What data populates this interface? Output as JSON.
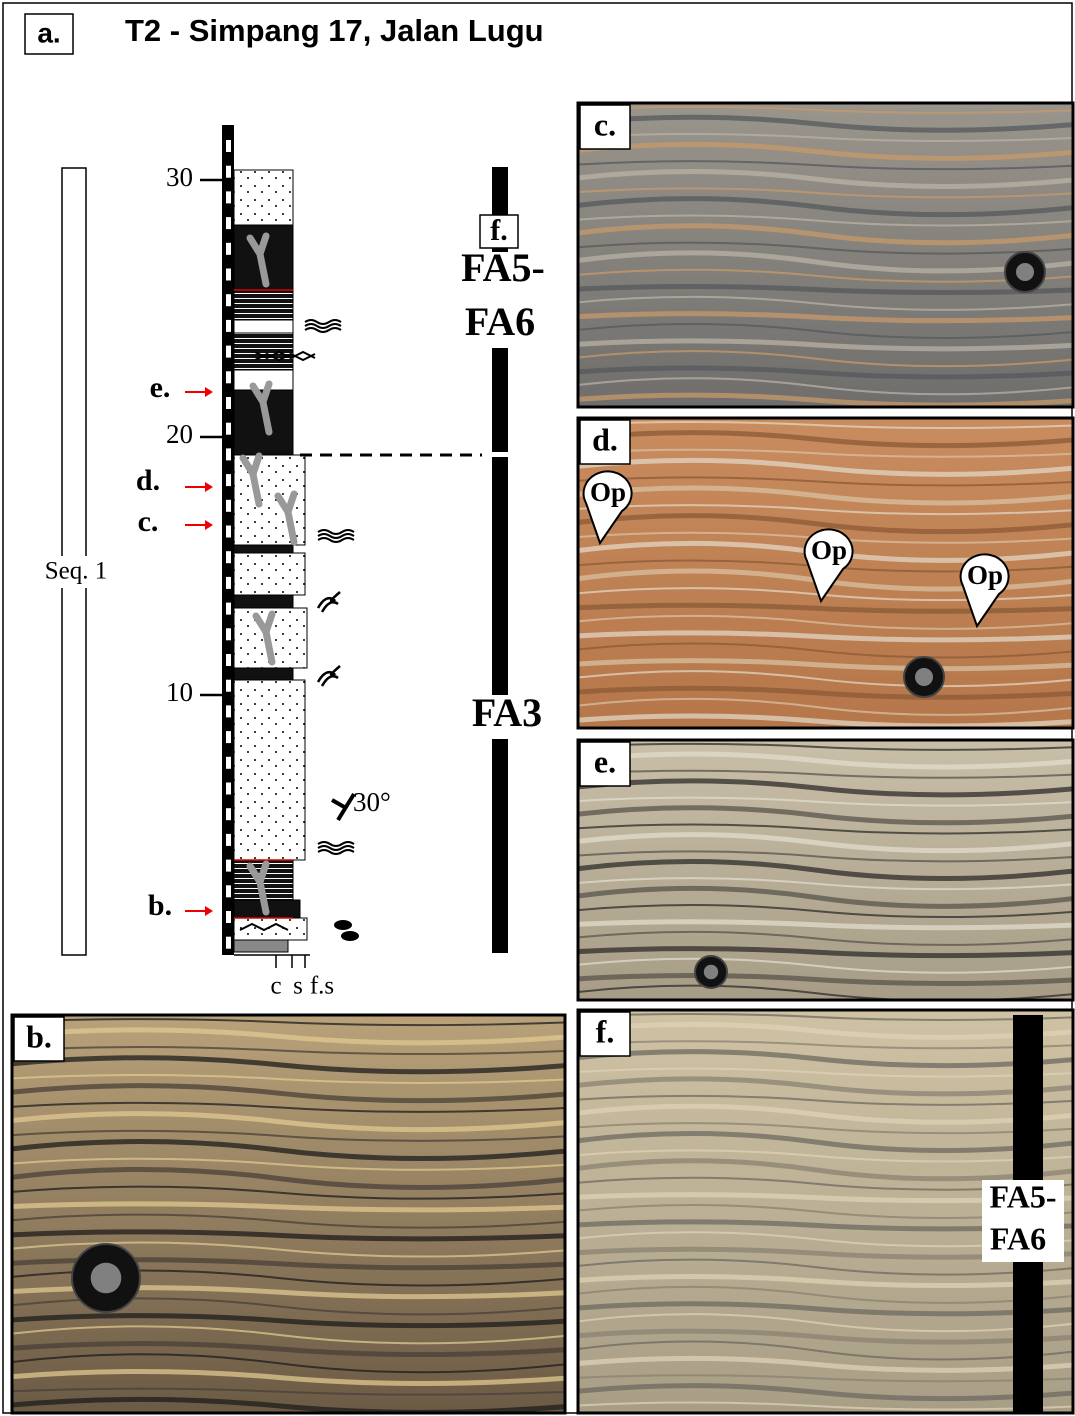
{
  "panel_label": "a.",
  "title": "T2 - Simpang 17, Jalan Lugu",
  "log": {
    "depth_ticks": [
      "30",
      "20",
      "10"
    ],
    "grain_size": [
      "c",
      "s",
      "f.s"
    ],
    "sequence": "Seq. 1",
    "dip": "30°",
    "markers": [
      "e.",
      "d.",
      "c.",
      "b."
    ],
    "facies": [
      {
        "ref": "f.",
        "label_lines": [
          "FA5-",
          "FA6"
        ]
      },
      {
        "label_lines": [
          "FA3"
        ]
      }
    ]
  },
  "photos": [
    {
      "label": "c."
    },
    {
      "label": "d.",
      "annotations": [
        "Op",
        "Op",
        "Op"
      ]
    },
    {
      "label": "e."
    },
    {
      "label": "f.",
      "annotations": [
        "FA5-",
        "FA6"
      ]
    },
    {
      "label": "b."
    }
  ]
}
